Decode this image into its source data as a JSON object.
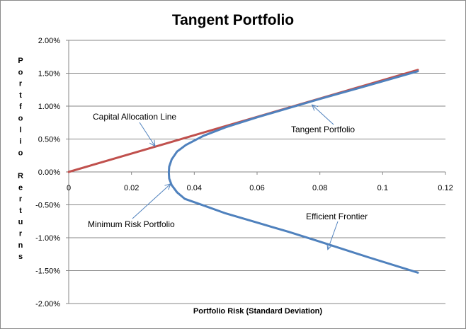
{
  "chart_data": {
    "type": "line",
    "title": "Tangent Portfolio",
    "xlabel": "Portfolio Risk (Standard  Deviation)",
    "ylabel": "Portfolio Rerturns",
    "xlim": [
      0,
      0.12
    ],
    "ylim": [
      -0.02,
      0.02
    ],
    "x_ticks": [
      "0",
      "0.02",
      "0.04",
      "0.06",
      "0.08",
      "0.1",
      "0.12"
    ],
    "x_tick_values": [
      0,
      0.02,
      0.04,
      0.06,
      0.08,
      0.1,
      0.12
    ],
    "y_ticks": [
      "2.00%",
      "1.50%",
      "1.00%",
      "0.50%",
      "0.00%",
      "-0.50%",
      "-1.00%",
      "-1.50%",
      "-2.00%"
    ],
    "y_tick_values": [
      0.02,
      0.015,
      0.01,
      0.005,
      0,
      -0.005,
      -0.01,
      -0.015,
      -0.02
    ],
    "grid": "horizontal",
    "series": [
      {
        "name": "Capital Allocation Line",
        "color": "#C0504D",
        "x": [
          0,
          0.1112
        ],
        "y": [
          0,
          0.0155
        ]
      },
      {
        "name": "Efficient Frontier",
        "color": "#4F81BD",
        "x": [
          0.1112,
          0.095,
          0.08,
          0.07,
          0.06,
          0.05,
          0.043,
          0.0373,
          0.0345,
          0.0328,
          0.032,
          0.0319,
          0.032,
          0.0328,
          0.0345,
          0.037,
          0.043,
          0.05,
          0.06,
          0.07,
          0.08,
          0.095,
          0.1112
        ],
        "y": [
          0.0153,
          0.0131,
          0.0111,
          0.0097,
          0.0083,
          0.0068,
          0.0055,
          0.0041,
          0.0031,
          0.0019,
          0.0008,
          -0.0001,
          -0.001,
          -0.002,
          -0.0031,
          -0.0041,
          -0.0051,
          -0.0063,
          -0.0077,
          -0.0091,
          -0.0106,
          -0.0129,
          -0.0153
        ]
      }
    ],
    "annotations": [
      {
        "text": "Capital Allocation Line",
        "point": [
          0.0275,
          0.0039
        ]
      },
      {
        "text": "Tangent Portfolio",
        "point": [
          0.0775,
          0.0102
        ]
      },
      {
        "text": "Minimum Risk Portfolio",
        "point": [
          0.0325,
          -0.0018
        ]
      },
      {
        "text": "Efficient Frontier",
        "point": [
          0.0825,
          -0.0118
        ]
      }
    ]
  }
}
